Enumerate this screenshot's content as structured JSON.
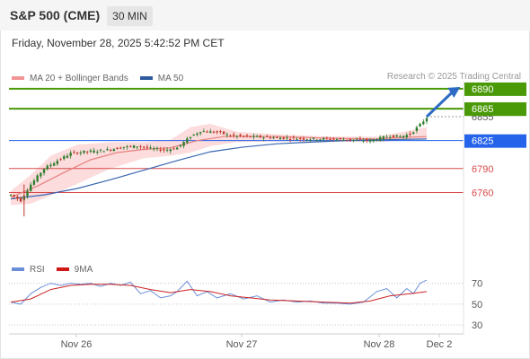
{
  "header": {
    "symbol": "S&P 500 (CME)",
    "interval": "30 MIN"
  },
  "datetime": "Friday, November 28, 2025 5:42:52 PM CET",
  "legend": {
    "ma20_label": "MA 20 + Bollinger Bands",
    "ma50_label": "MA 50",
    "rsi_label": "RSI",
    "rsi_ma_label": "9MA"
  },
  "credit": "Research © 2025 Trading Central",
  "colors": {
    "resistance": "#4a9a07",
    "pivot": "#2563eb",
    "support": "#d94a4a",
    "ma20": "#e88080",
    "ma50": "#3a66b0",
    "bollinger": "#fbd6d6",
    "candle_up": "#2f7d2f",
    "candle_down": "#c0392b",
    "arrow": "#2d6bc4",
    "rsi": "#6a8fd8",
    "rsi_ma": "#cc2222"
  },
  "chart_data": {
    "type": "candlestick",
    "x_labels": [
      "Nov 26",
      "Nov 27",
      "Nov 28",
      "Dec 2"
    ],
    "price_tag_hidden": "6855",
    "levels": [
      {
        "value": 6890,
        "kind": "resistance",
        "label": "6890"
      },
      {
        "value": 6865,
        "kind": "resistance",
        "label": "6865"
      },
      {
        "value": 6825,
        "kind": "pivot",
        "label": "6825"
      },
      {
        "value": 6790,
        "kind": "support",
        "label": "6790"
      },
      {
        "value": 6760,
        "kind": "support",
        "label": "6760"
      }
    ],
    "current_price": 6855,
    "price_ylim": [
      6720,
      6900
    ],
    "close_path": [
      [
        0,
        6757
      ],
      [
        3,
        6750
      ],
      [
        6,
        6770
      ],
      [
        10,
        6790
      ],
      [
        14,
        6800
      ],
      [
        18,
        6809
      ],
      [
        22,
        6811
      ],
      [
        26,
        6812
      ],
      [
        30,
        6814
      ],
      [
        34,
        6817
      ],
      [
        38,
        6818
      ],
      [
        42,
        6815
      ],
      [
        46,
        6813
      ],
      [
        50,
        6816
      ],
      [
        54,
        6830
      ],
      [
        57,
        6837
      ],
      [
        60,
        6836
      ],
      [
        63,
        6835
      ],
      [
        66,
        6831
      ],
      [
        72,
        6830
      ],
      [
        78,
        6829
      ],
      [
        84,
        6828
      ],
      [
        90,
        6827
      ],
      [
        96,
        6827
      ],
      [
        102,
        6826
      ],
      [
        108,
        6825
      ],
      [
        111,
        6828
      ],
      [
        114,
        6831
      ],
      [
        117,
        6830
      ],
      [
        120,
        6833
      ],
      [
        123,
        6845
      ],
      [
        125,
        6854
      ]
    ],
    "ma20_path": [
      [
        0,
        6754
      ],
      [
        8,
        6768
      ],
      [
        16,
        6785
      ],
      [
        24,
        6801
      ],
      [
        32,
        6810
      ],
      [
        40,
        6814
      ],
      [
        48,
        6816
      ],
      [
        56,
        6825
      ],
      [
        64,
        6830
      ],
      [
        80,
        6830
      ],
      [
        96,
        6828
      ],
      [
        110,
        6827
      ],
      [
        118,
        6829
      ],
      [
        125,
        6830
      ]
    ],
    "ma50_path": [
      [
        0,
        6752
      ],
      [
        10,
        6757
      ],
      [
        20,
        6765
      ],
      [
        30,
        6776
      ],
      [
        40,
        6788
      ],
      [
        50,
        6800
      ],
      [
        60,
        6811
      ],
      [
        70,
        6817
      ],
      [
        80,
        6821
      ],
      [
        90,
        6823
      ],
      [
        100,
        6825
      ],
      [
        110,
        6826
      ],
      [
        125,
        6827
      ]
    ],
    "bollinger_band": [
      [
        0,
        6744,
        6762
      ],
      [
        6,
        6746,
        6782
      ],
      [
        12,
        6756,
        6806
      ],
      [
        20,
        6771,
        6820
      ],
      [
        30,
        6790,
        6823
      ],
      [
        40,
        6803,
        6823
      ],
      [
        48,
        6806,
        6826
      ],
      [
        54,
        6810,
        6842
      ],
      [
        60,
        6818,
        6846
      ],
      [
        68,
        6823,
        6836
      ],
      [
        80,
        6824,
        6833
      ],
      [
        96,
        6824,
        6830
      ],
      [
        110,
        6823,
        6830
      ],
      [
        118,
        6825,
        6836
      ],
      [
        125,
        6828,
        6842
      ]
    ],
    "forecast_arrow": {
      "from": [
        125,
        6855
      ],
      "to": [
        134,
        6890
      ]
    },
    "rsi": {
      "levels": [
        70,
        50,
        30
      ],
      "ylim": [
        25,
        80
      ],
      "rsi_path": [
        [
          0,
          52
        ],
        [
          3,
          50
        ],
        [
          6,
          60
        ],
        [
          9,
          66
        ],
        [
          12,
          70
        ],
        [
          15,
          68
        ],
        [
          18,
          70
        ],
        [
          21,
          69
        ],
        [
          24,
          70
        ],
        [
          27,
          67
        ],
        [
          30,
          70
        ],
        [
          33,
          68
        ],
        [
          36,
          71
        ],
        [
          39,
          60
        ],
        [
          42,
          63
        ],
        [
          45,
          56
        ],
        [
          48,
          58
        ],
        [
          50,
          62
        ],
        [
          53,
          72
        ],
        [
          56,
          58
        ],
        [
          59,
          62
        ],
        [
          62,
          56
        ],
        [
          66,
          60
        ],
        [
          70,
          55
        ],
        [
          74,
          58
        ],
        [
          78,
          52
        ],
        [
          82,
          54
        ],
        [
          86,
          52
        ],
        [
          90,
          53
        ],
        [
          94,
          51
        ],
        [
          98,
          51
        ],
        [
          102,
          50
        ],
        [
          106,
          52
        ],
        [
          110,
          62
        ],
        [
          113,
          65
        ],
        [
          116,
          56
        ],
        [
          119,
          65
        ],
        [
          121,
          60
        ],
        [
          123,
          70
        ],
        [
          125,
          73
        ]
      ],
      "rsi_ma_path": [
        [
          0,
          52
        ],
        [
          6,
          55
        ],
        [
          12,
          64
        ],
        [
          18,
          68
        ],
        [
          24,
          69
        ],
        [
          30,
          69
        ],
        [
          36,
          68
        ],
        [
          42,
          64
        ],
        [
          48,
          61
        ],
        [
          54,
          64
        ],
        [
          60,
          62
        ],
        [
          66,
          58
        ],
        [
          72,
          56
        ],
        [
          78,
          54
        ],
        [
          86,
          53
        ],
        [
          94,
          52
        ],
        [
          102,
          51
        ],
        [
          108,
          53
        ],
        [
          114,
          58
        ],
        [
          120,
          60
        ],
        [
          125,
          62
        ]
      ]
    }
  }
}
